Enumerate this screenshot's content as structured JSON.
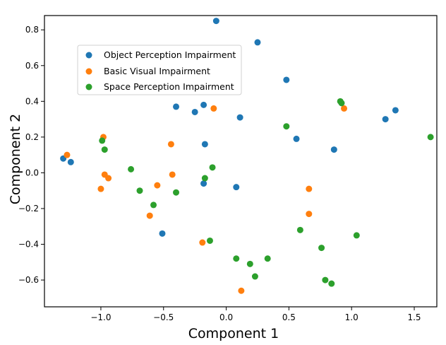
{
  "chart_data": {
    "type": "scatter",
    "title": "",
    "xlabel": "Component 1",
    "ylabel": "Component 2",
    "xlim": [
      -1.45,
      1.68
    ],
    "ylim": [
      -0.75,
      0.88
    ],
    "xticks": [
      -1.0,
      -0.5,
      0.0,
      0.5,
      1.0,
      1.5
    ],
    "xtick_labels": [
      "−1.0",
      "−0.5",
      "0.0",
      "0.5",
      "1.0",
      "1.5"
    ],
    "yticks": [
      -0.6,
      -0.4,
      -0.2,
      0.0,
      0.2,
      0.4,
      0.6,
      0.8
    ],
    "ytick_labels": [
      "−0.6",
      "−0.4",
      "−0.2",
      "0.0",
      "0.2",
      "0.4",
      "0.6",
      "0.8"
    ],
    "grid": false,
    "legend_position": "upper-left",
    "series": [
      {
        "name": "Object Perception Impairment",
        "color": "#1f77b4",
        "points": [
          [
            -0.08,
            0.85
          ],
          [
            0.25,
            0.73
          ],
          [
            -0.4,
            0.37
          ],
          [
            -0.25,
            0.34
          ],
          [
            -0.18,
            0.38
          ],
          [
            0.11,
            0.31
          ],
          [
            0.48,
            0.52
          ],
          [
            0.56,
            0.19
          ],
          [
            -0.17,
            0.16
          ],
          [
            0.86,
            0.13
          ],
          [
            1.27,
            0.3
          ],
          [
            1.35,
            0.35
          ],
          [
            -1.3,
            0.08
          ],
          [
            -1.24,
            0.06
          ],
          [
            -0.18,
            -0.06
          ],
          [
            0.08,
            -0.08
          ],
          [
            -0.51,
            -0.34
          ]
        ]
      },
      {
        "name": "Basic Visual Impairment",
        "color": "#ff7f0e",
        "points": [
          [
            -0.1,
            0.36
          ],
          [
            0.94,
            0.36
          ],
          [
            -0.98,
            0.2
          ],
          [
            -0.44,
            0.16
          ],
          [
            -1.27,
            0.1
          ],
          [
            -0.97,
            -0.01
          ],
          [
            -0.94,
            -0.03
          ],
          [
            -0.43,
            -0.01
          ],
          [
            -0.55,
            -0.07
          ],
          [
            -1.0,
            -0.09
          ],
          [
            0.66,
            -0.09
          ],
          [
            0.66,
            -0.23
          ],
          [
            -0.61,
            -0.24
          ],
          [
            -0.19,
            -0.39
          ],
          [
            0.12,
            -0.66
          ]
        ]
      },
      {
        "name": "Space Perception Impairment",
        "color": "#2ca02c",
        "points": [
          [
            0.91,
            0.4
          ],
          [
            0.92,
            0.39
          ],
          [
            0.48,
            0.26
          ],
          [
            1.63,
            0.2
          ],
          [
            -0.99,
            0.18
          ],
          [
            -0.97,
            0.13
          ],
          [
            -0.76,
            0.02
          ],
          [
            -0.11,
            0.03
          ],
          [
            -0.17,
            -0.03
          ],
          [
            -0.69,
            -0.1
          ],
          [
            -0.4,
            -0.11
          ],
          [
            -0.58,
            -0.18
          ],
          [
            0.59,
            -0.32
          ],
          [
            1.04,
            -0.35
          ],
          [
            -0.13,
            -0.38
          ],
          [
            0.76,
            -0.42
          ],
          [
            0.08,
            -0.48
          ],
          [
            0.19,
            -0.51
          ],
          [
            0.33,
            -0.48
          ],
          [
            0.23,
            -0.58
          ],
          [
            0.79,
            -0.6
          ],
          [
            0.84,
            -0.62
          ]
        ]
      }
    ]
  }
}
